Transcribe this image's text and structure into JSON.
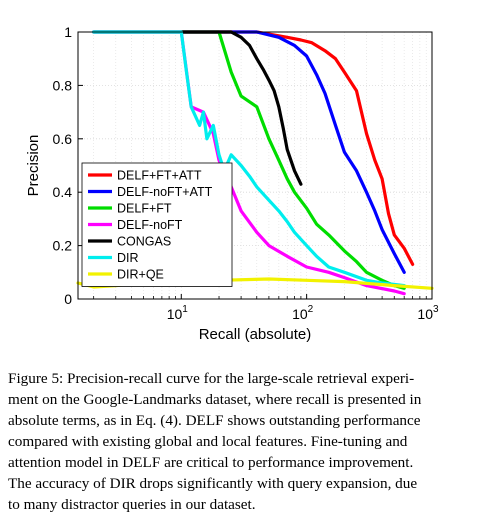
{
  "chart_data": {
    "type": "line",
    "xlabel": "Recall (absolute)",
    "ylabel": "Precision",
    "xscale": "log",
    "xlim": [
      1.5,
      1000
    ],
    "ylim": [
      0,
      1
    ],
    "x_ticks": [
      {
        "value": 10,
        "base": "10",
        "exp": "1"
      },
      {
        "value": 100,
        "base": "10",
        "exp": "2"
      },
      {
        "value": 1000,
        "base": "10",
        "exp": "3"
      }
    ],
    "y_ticks": [
      {
        "value": 0,
        "label": "0"
      },
      {
        "value": 0.2,
        "label": "0.2"
      },
      {
        "value": 0.4,
        "label": "0.4"
      },
      {
        "value": 0.6,
        "label": "0.6"
      },
      {
        "value": 0.8,
        "label": "0.8"
      },
      {
        "value": 1,
        "label": "1"
      }
    ],
    "grid": true,
    "legend_position": "lower-left",
    "series": [
      {
        "name": "DELF+FT+ATT",
        "color": "#ff0000",
        "x": [
          2,
          40,
          70,
          90,
          110,
          140,
          170,
          200,
          250,
          300,
          350,
          400,
          450,
          500,
          600,
          700
        ],
        "y": [
          1,
          1,
          0.98,
          0.97,
          0.96,
          0.93,
          0.9,
          0.85,
          0.78,
          0.62,
          0.52,
          0.45,
          0.32,
          0.24,
          0.19,
          0.13
        ]
      },
      {
        "name": "DELF-noFT+ATT",
        "color": "#0000ff",
        "x": [
          2,
          40,
          60,
          80,
          100,
          120,
          140,
          170,
          200,
          250,
          300,
          350,
          400,
          500,
          600
        ],
        "y": [
          1,
          1,
          0.98,
          0.95,
          0.91,
          0.84,
          0.77,
          0.65,
          0.55,
          0.48,
          0.4,
          0.33,
          0.26,
          0.17,
          0.1
        ]
      },
      {
        "name": "DELF+FT",
        "color": "#00dd00",
        "x": [
          2,
          20,
          25,
          30,
          40,
          50,
          60,
          70,
          80,
          100,
          120,
          150,
          200,
          250,
          300,
          400,
          500,
          600
        ],
        "y": [
          1,
          1,
          0.85,
          0.76,
          0.72,
          0.6,
          0.52,
          0.45,
          0.4,
          0.34,
          0.28,
          0.24,
          0.18,
          0.14,
          0.1,
          0.07,
          0.05,
          0.04
        ]
      },
      {
        "name": "DELF-noFT",
        "color": "#ff00ff",
        "x": [
          2,
          10,
          12,
          15,
          18,
          20,
          25,
          30,
          40,
          50,
          70,
          100,
          150,
          200,
          300,
          500,
          600
        ],
        "y": [
          1,
          1,
          0.72,
          0.7,
          0.62,
          0.52,
          0.42,
          0.33,
          0.25,
          0.2,
          0.16,
          0.12,
          0.1,
          0.08,
          0.05,
          0.03,
          0.02
        ]
      },
      {
        "name": "CONGAS",
        "color": "#000000",
        "x": [
          10,
          25,
          30,
          35,
          40,
          45,
          50,
          55,
          60,
          65,
          70,
          80,
          90
        ],
        "y": [
          1,
          1,
          0.98,
          0.95,
          0.9,
          0.86,
          0.82,
          0.78,
          0.72,
          0.64,
          0.56,
          0.48,
          0.43
        ]
      },
      {
        "name": "DIR",
        "color": "#00eeee",
        "x": [
          2,
          10,
          11,
          12,
          14,
          15,
          16,
          18,
          20,
          22,
          25,
          30,
          35,
          40,
          50,
          60,
          70,
          80,
          100,
          120,
          150,
          200,
          300,
          400,
          600
        ],
        "y": [
          1,
          1,
          0.85,
          0.72,
          0.65,
          0.7,
          0.6,
          0.65,
          0.54,
          0.48,
          0.54,
          0.5,
          0.46,
          0.42,
          0.37,
          0.33,
          0.29,
          0.25,
          0.2,
          0.16,
          0.12,
          0.1,
          0.07,
          0.06,
          0.05
        ]
      },
      {
        "name": "DIR+QE",
        "color": "#f2f200",
        "x": [
          1.5,
          2,
          3,
          5,
          10,
          20,
          50,
          100,
          200,
          500,
          1000
        ],
        "y": [
          0.06,
          0.045,
          0.05,
          0.06,
          0.065,
          0.07,
          0.075,
          0.07,
          0.065,
          0.05,
          0.04
        ]
      }
    ]
  },
  "caption": {
    "lines": [
      "Figure 5: Precision-recall curve for the large-scale retrieval experi-",
      "ment on the Google-Landmarks dataset, where recall is presented in",
      "absolute terms, as in Eq. (4). DELF shows outstanding performance",
      "compared with existing global and local features. Fine-tuning and",
      "attention model in DELF are critical to performance improvement.",
      "The accuracy of DIR drops significantly with query expansion, due",
      "to many distractor queries in our dataset."
    ]
  }
}
